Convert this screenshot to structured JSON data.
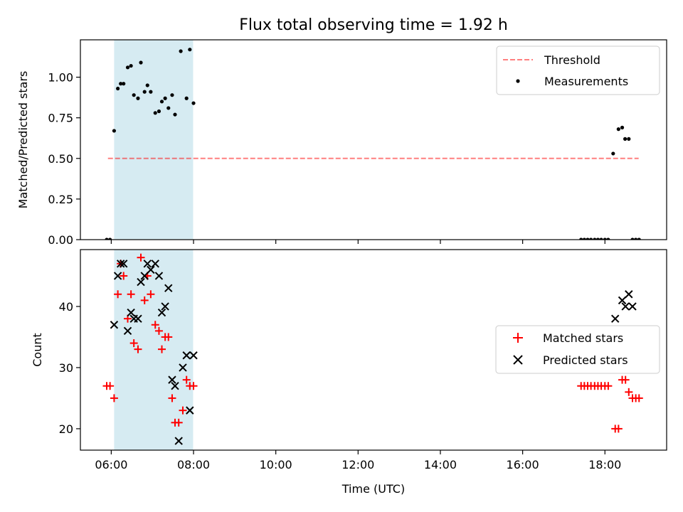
{
  "title": "Flux total observing time = 1.92 h",
  "colors": {
    "shade": "#add8e6",
    "threshold": "#ff0000",
    "measurement": "#000000",
    "matched": "#ff0000",
    "predicted": "#000000"
  },
  "chart_data": [
    {
      "type": "scatter",
      "ylabel": "Matched/Predicted stars",
      "xlim": [
        5.25,
        19.5
      ],
      "ylim": [
        0.0,
        1.23
      ],
      "yticks": [
        {
          "value": 0.0,
          "label": "0.00"
        },
        {
          "value": 0.25,
          "label": "0.25"
        },
        {
          "value": 0.5,
          "label": "0.50"
        },
        {
          "value": 0.75,
          "label": "0.75"
        },
        {
          "value": 1.0,
          "label": "1.00"
        }
      ],
      "shaded_span": [
        6.07,
        7.99
      ],
      "legend_position": "upper right",
      "threshold": {
        "name": "Threshold",
        "y": 0.5,
        "x_range": [
          5.92,
          18.82
        ],
        "style": "dashed"
      },
      "series": [
        {
          "name": "Measurements",
          "marker": "dot",
          "x": [
            5.89,
            5.97,
            6.07,
            6.16,
            6.23,
            6.3,
            6.4,
            6.48,
            6.55,
            6.65,
            6.72,
            6.81,
            6.88,
            6.96,
            7.07,
            7.16,
            7.23,
            7.31,
            7.39,
            7.48,
            7.55,
            7.69,
            7.83,
            7.91,
            8.0,
            17.42,
            17.5,
            17.58,
            17.66,
            17.75,
            17.83,
            17.91,
            18.0,
            18.08,
            18.2,
            18.33,
            18.42,
            18.49,
            18.58,
            18.67,
            18.75,
            18.83
          ],
          "y": [
            0.0,
            0.0,
            0.67,
            0.93,
            0.96,
            0.96,
            1.06,
            1.07,
            0.89,
            0.87,
            1.09,
            0.91,
            0.95,
            0.91,
            0.78,
            0.79,
            0.85,
            0.87,
            0.81,
            0.89,
            0.77,
            1.16,
            0.87,
            1.17,
            0.84,
            0.0,
            0.0,
            0.0,
            0.0,
            0.0,
            0.0,
            0.0,
            0.0,
            0.0,
            0.53,
            0.68,
            0.69,
            0.62,
            0.62,
            0.0,
            0.0,
            0.0
          ]
        }
      ]
    },
    {
      "type": "scatter",
      "ylabel": "Count",
      "xlabel": "Time (UTC)",
      "xlim": [
        5.25,
        19.5
      ],
      "ylim": [
        16.5,
        49.3
      ],
      "yticks": [
        {
          "value": 20,
          "label": "20"
        },
        {
          "value": 30,
          "label": "30"
        },
        {
          "value": 40,
          "label": "40"
        }
      ],
      "xticks": [
        {
          "value": 6,
          "label": "06:00"
        },
        {
          "value": 8,
          "label": "08:00"
        },
        {
          "value": 10,
          "label": "10:00"
        },
        {
          "value": 12,
          "label": "12:00"
        },
        {
          "value": 14,
          "label": "14:00"
        },
        {
          "value": 16,
          "label": "16:00"
        },
        {
          "value": 18,
          "label": "18:00"
        }
      ],
      "shaded_span": [
        6.07,
        7.99
      ],
      "legend_position": "center right",
      "series": [
        {
          "name": "Matched stars",
          "marker": "plus",
          "x": [
            5.89,
            5.97,
            6.07,
            6.16,
            6.23,
            6.3,
            6.4,
            6.48,
            6.55,
            6.65,
            6.72,
            6.81,
            6.88,
            6.96,
            7.07,
            7.16,
            7.23,
            7.31,
            7.39,
            7.48,
            7.55,
            7.64,
            7.74,
            7.83,
            7.91,
            8.0,
            17.42,
            17.5,
            17.58,
            17.66,
            17.75,
            17.83,
            17.91,
            18.0,
            18.08,
            18.25,
            18.33,
            18.42,
            18.5,
            18.58,
            18.67,
            18.75,
            18.83
          ],
          "y": [
            27,
            27,
            25,
            42,
            47,
            45,
            38,
            42,
            34,
            33,
            48,
            41,
            45,
            42,
            37,
            36,
            33,
            35,
            35,
            25,
            21,
            21,
            23,
            28,
            27,
            27,
            27,
            27,
            27,
            27,
            27,
            27,
            27,
            27,
            27,
            20,
            20,
            28,
            28,
            26,
            25,
            25,
            25
          ]
        },
        {
          "name": "Predicted stars",
          "marker": "x",
          "x": [
            6.07,
            6.16,
            6.23,
            6.3,
            6.4,
            6.48,
            6.55,
            6.65,
            6.72,
            6.81,
            6.88,
            6.96,
            7.07,
            7.16,
            7.23,
            7.31,
            7.39,
            7.48,
            7.55,
            7.64,
            7.74,
            7.83,
            7.91,
            8.0,
            18.25,
            18.42,
            18.5,
            18.58,
            18.67
          ],
          "y": [
            37,
            45,
            47,
            47,
            36,
            39,
            38,
            38,
            44,
            45,
            47,
            46,
            47,
            45,
            39,
            40,
            43,
            28,
            27,
            18,
            30,
            32,
            23,
            32,
            38,
            41,
            40,
            42,
            40
          ]
        }
      ]
    }
  ]
}
